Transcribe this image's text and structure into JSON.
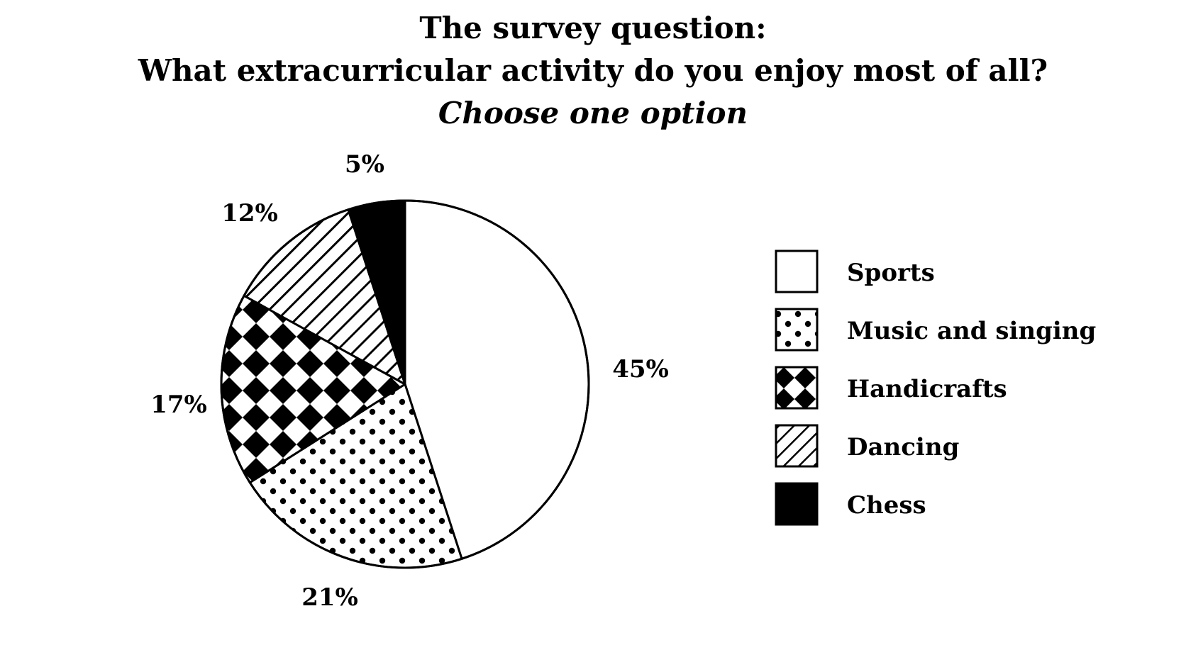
{
  "title_lines": [
    "The survey question:",
    "What extracurricular activity do you enjoy most of all?",
    "Choose one option"
  ],
  "chart_data": {
    "type": "pie",
    "title": "The survey question: What extracurricular activity do you enjoy most of all?",
    "subtitle": "Choose one option",
    "categories": [
      "Sports",
      "Music and singing",
      "Handicrafts",
      "Dancing",
      "Chess"
    ],
    "values": [
      45,
      21,
      17,
      12,
      5
    ],
    "labels": [
      "45%",
      "21%",
      "17%",
      "12%",
      "5%"
    ],
    "patterns": [
      "blank",
      "dots",
      "checker-diamond",
      "diagonal-stripes",
      "solid-black"
    ],
    "start": "12 o'clock",
    "direction": "clockwise",
    "legend_position": "right"
  }
}
